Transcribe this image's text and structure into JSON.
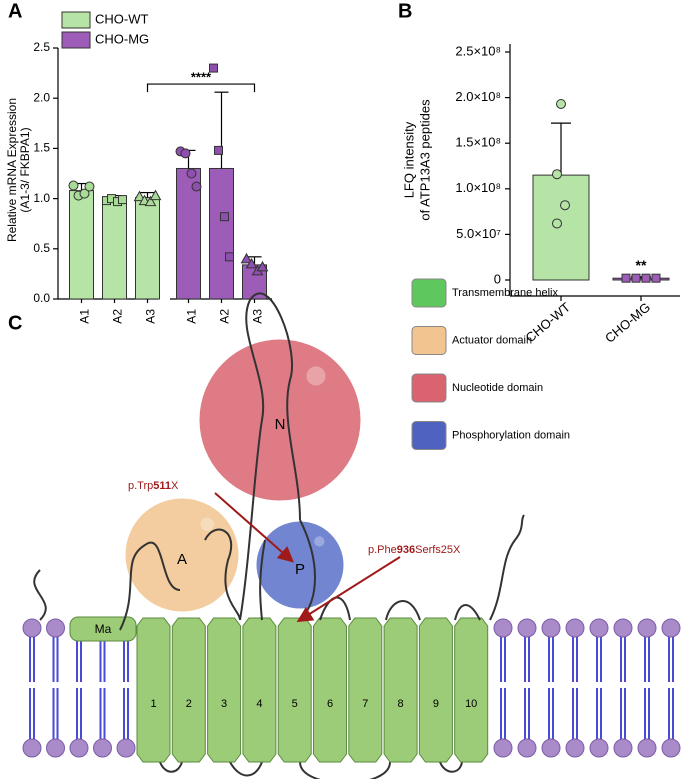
{
  "chart_data": [
    {
      "type": "bar",
      "panel_label": "A",
      "y_label": [
        "Relative mRNA Expression",
        "(A1-3/ FKBPA1)"
      ],
      "categories": [
        "A1",
        "A2",
        "A3"
      ],
      "ylim": [
        0,
        2.5
      ],
      "yticks": [
        {
          "value": 0,
          "label": "0.0"
        },
        0.5,
        {
          "value": 1,
          "label": "1.0"
        },
        1.5,
        {
          "value": 2,
          "label": "2.0"
        },
        2.5
      ],
      "series": [
        {
          "name": "CHO-WT",
          "color": "#b6e3a6",
          "point_color": "#a8dc96",
          "values": [
            1.08,
            0.99,
            1.01
          ],
          "errors": [
            0.07,
            0.04,
            0.05
          ],
          "points": [
            [
              1.13,
              1.03,
              1.05,
              1.12
            ],
            [
              0.98,
              1.0,
              0.97,
              0.99
            ],
            [
              1.02,
              0.98,
              0.97,
              1.03
            ]
          ]
        },
        {
          "name": "CHO-MG",
          "color": "#9c5cb8",
          "point_color": "#8e4fae",
          "values": [
            1.3,
            1.3,
            0.34
          ],
          "errors": [
            0.18,
            0.76,
            0.08
          ],
          "points": [
            [
              1.47,
              1.45,
              1.25,
              1.12
            ],
            [
              2.3,
              1.48,
              0.82,
              0.42
            ],
            [
              0.4,
              0.35,
              0.28,
              0.32
            ]
          ]
        }
      ],
      "significance": {
        "label": "****",
        "y": 2.32
      }
    },
    {
      "type": "bar",
      "panel_label": "B",
      "y_label": [
        "LFQ intensity",
        "of ATP13A3 peptides"
      ],
      "categories": [
        "CHO-WT",
        "CHO-MG"
      ],
      "colors": [
        "#b6e3a6",
        "#9c5cb8"
      ],
      "ylim": [
        0,
        250000000
      ],
      "yticks": [
        0,
        {
          "value": 50000000,
          "label": "5.0×10⁷"
        },
        {
          "value": 100000000,
          "label": "1.0×10⁸"
        },
        {
          "value": 150000000,
          "label": "1.5×10⁸"
        },
        {
          "value": 200000000,
          "label": "2.0×10⁸"
        },
        {
          "value": 250000000,
          "label": "2.5×10⁸"
        }
      ],
      "values": [
        115000000,
        2000000
      ],
      "errors": [
        57000000,
        1500000
      ],
      "points": [
        [
          193000000,
          116000000,
          82000000,
          62000000
        ],
        [
          2000000,
          2000000,
          2000000,
          2000000
        ]
      ],
      "annotations": [
        {
          "label": "**",
          "category": 1
        }
      ]
    }
  ],
  "diagram": {
    "panel_label": "C",
    "legend": [
      {
        "label": "Transmembrane helix",
        "color": "#5ec85e"
      },
      {
        "label": "Actuator domain",
        "color": "#f2c48f"
      },
      {
        "label": "Nucleotide domain",
        "color": "#d9646f"
      },
      {
        "label": "Phosphorylation domain",
        "color": "#4f62c0"
      }
    ],
    "domains": [
      {
        "label": "N",
        "color": "#d9646f"
      },
      {
        "label": "A",
        "color": "#f2c48f"
      },
      {
        "label": "P",
        "color": "#5a70c8"
      }
    ],
    "membrane_label": "Ma",
    "helices": [
      "1",
      "2",
      "3",
      "4",
      "5",
      "6",
      "7",
      "8",
      "9",
      "10"
    ],
    "mutations": [
      {
        "parts": [
          "p.Trp",
          "511",
          "X"
        ]
      },
      {
        "parts": [
          "p.Phe",
          "936",
          "Serfs25X"
        ]
      }
    ]
  }
}
